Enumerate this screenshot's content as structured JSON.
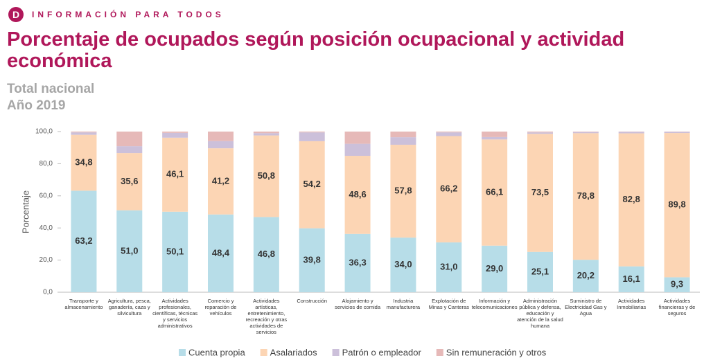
{
  "chart_data": {
    "type": "stacked-bar",
    "header": "INFORMACIÓN PARA TODOS",
    "title": "Porcentaje de ocupados según posición ocupacional y actividad económica",
    "subtitle": [
      "Total nacional",
      "Año 2019"
    ],
    "ylabel": "Porcentaje",
    "categories": [
      "Transporte y almacenamiento",
      "Agricultura, pesca, ganadería, caza y silvicultura",
      "Actividades profesionales, científicas, técnicas y servicios administrativos",
      "Comercio y reparación de vehículos",
      "Actividades artísticas, entretenimiento, recreación y otras actividades de servicios",
      "Construcción",
      "Alojamiento y servicios de comida",
      "Industria manufacturera",
      "Explotación de Minas y Canteras",
      "Información y telecomunicaciones",
      "Administración pública y defensa, educación y atención de la salud humana",
      "Suministro de Electricidad Gas y Agua",
      "Actividades Inmobiliarias",
      "Actividades financieras y de seguros"
    ],
    "series": [
      {
        "name": "Cuenta propia",
        "color": "#b7dde8",
        "values": [
          63.2,
          51.0,
          50.1,
          48.4,
          46.8,
          39.8,
          36.3,
          34.0,
          31.0,
          29.0,
          25.1,
          20.2,
          16.1,
          9.3
        ],
        "value_labels": [
          "63,2",
          "51,0",
          "50,1",
          "48,4",
          "46,8",
          "39,8",
          "36,3",
          "34,0",
          "31,0",
          "29,0",
          "25,1",
          "20,2",
          "16,1",
          "9,3"
        ]
      },
      {
        "name": "Asalariados",
        "color": "#fcd5b4",
        "values": [
          34.8,
          35.6,
          46.1,
          41.2,
          50.8,
          54.2,
          48.6,
          57.8,
          66.2,
          66.1,
          73.5,
          78.8,
          82.8,
          89.8
        ],
        "value_labels": [
          "34,8",
          "35,6",
          "46,1",
          "41,2",
          "50,8",
          "54,2",
          "48,6",
          "57,8",
          "66,2",
          "66,1",
          "73,5",
          "78,8",
          "82,8",
          "89,8"
        ]
      },
      {
        "name": "Patrón o empleador",
        "color": "#ccc0da",
        "values": [
          1.5,
          4.3,
          3.0,
          4.5,
          1.4,
          5.5,
          7.5,
          4.7,
          2.3,
          1.5,
          0.9,
          0.7,
          0.9,
          0.7
        ]
      },
      {
        "name": "Sin remuneración y otros",
        "color": "#e6b9b8",
        "values": [
          0.5,
          9.1,
          0.8,
          5.9,
          1.0,
          0.5,
          7.6,
          3.5,
          0.5,
          3.4,
          0.5,
          0.3,
          0.2,
          0.2
        ]
      }
    ],
    "ylim": [
      0,
      100
    ],
    "yticks": [
      {
        "value": 0,
        "label": "0,0"
      },
      {
        "value": 20,
        "label": "20,0"
      },
      {
        "value": 40,
        "label": "40,0"
      },
      {
        "value": 60,
        "label": "60,0"
      },
      {
        "value": 80,
        "label": "80,0"
      },
      {
        "value": 100,
        "label": "100,0"
      }
    ],
    "legend": "bottom"
  }
}
